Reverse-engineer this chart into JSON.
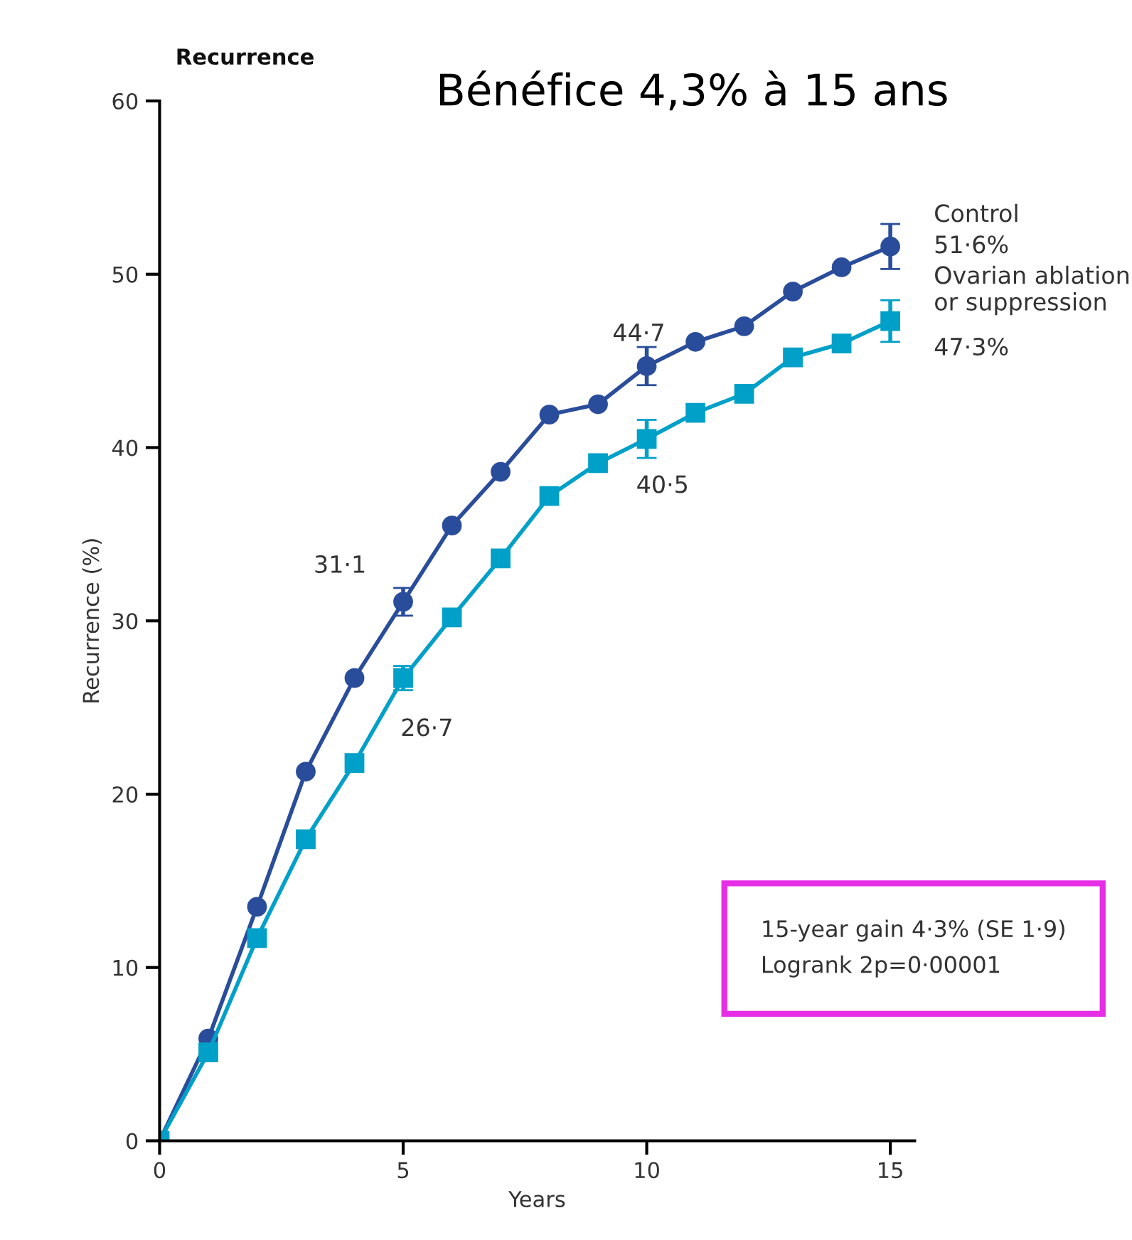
{
  "chart_data": {
    "type": "line",
    "title": "Recurrence",
    "ylabel": "Recurrence (%)",
    "xlabel": "Years",
    "x": [
      0,
      1,
      2,
      3,
      4,
      5,
      6,
      7,
      8,
      9,
      10,
      11,
      12,
      13,
      14,
      15
    ],
    "series": [
      {
        "name": "Control",
        "color": "#2a4d9b",
        "marker": "circle",
        "values": [
          0,
          5.9,
          13.5,
          21.3,
          26.7,
          31.1,
          35.5,
          38.6,
          41.9,
          42.5,
          44.7,
          46.1,
          47.0,
          49.0,
          50.4,
          51.6
        ],
        "errors": [
          null,
          null,
          null,
          null,
          null,
          0.8,
          null,
          null,
          null,
          null,
          1.1,
          null,
          null,
          null,
          null,
          1.3
        ]
      },
      {
        "name": "Ovarian ablation or suppression",
        "color": "#00a0c8",
        "marker": "square",
        "values": [
          0,
          5.1,
          11.7,
          17.4,
          21.8,
          26.7,
          30.2,
          33.6,
          37.2,
          39.1,
          40.5,
          42.0,
          43.1,
          45.2,
          46.0,
          47.3
        ],
        "errors": [
          null,
          null,
          null,
          null,
          null,
          0.7,
          null,
          null,
          null,
          null,
          1.1,
          null,
          null,
          null,
          null,
          1.2
        ]
      }
    ],
    "xlim": [
      0,
      15.5
    ],
    "xticks": [
      0,
      5,
      10,
      15
    ],
    "ylim": [
      0,
      60
    ],
    "yticks": [
      0,
      10,
      20,
      30,
      40,
      50,
      60
    ],
    "grid": false,
    "legend": false,
    "line_style": "solid",
    "annotations": [
      "Bénéfice 4,3% à 15 ans",
      "15-year gain 4·3% (SE 1·9)\nLogrank 2p=0·00001",
      {
        "text": "31·1",
        "x": 5,
        "y": 31.1
      },
      {
        "text": "26·7",
        "x": 5,
        "y": 26.7
      },
      {
        "text": "44·7",
        "x": 10,
        "y": 44.7
      },
      {
        "text": "40·5",
        "x": 10,
        "y": 40.5
      },
      {
        "text": "51·6%",
        "x": 15,
        "y": 51.6
      },
      {
        "text": "47·3%",
        "x": 15,
        "y": 47.3
      }
    ]
  }
}
